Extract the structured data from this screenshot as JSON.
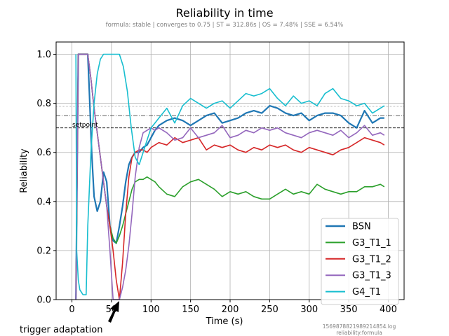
{
  "chart_data": {
    "type": "line",
    "title": "Reliability in time",
    "subtitle": "formula: stable | converges to 0.75 | ST = 312.86s | OS = 7.48% | SSE = 6.54%",
    "xlabel": "Time (s)",
    "ylabel": "Reliability",
    "xlim": [
      -20,
      420
    ],
    "ylim": [
      0,
      1.05
    ],
    "xticks": [
      0,
      50,
      100,
      150,
      200,
      250,
      300,
      350,
      400
    ],
    "yticks": [
      0.0,
      0.2,
      0.4,
      0.6,
      0.8,
      1.0
    ],
    "xtick_labels": [
      "0",
      "50",
      "100",
      "150",
      "200",
      "250",
      "300",
      "350",
      "400"
    ],
    "ytick_labels": [
      "0.0",
      "0.2",
      "0.4",
      "0.6",
      "0.8",
      "1.0"
    ],
    "grid": true,
    "legend_position": "bottom-right",
    "reference_lines": {
      "setpoint_value": 0.7,
      "setpoint_label": "setpoint",
      "converge_value": 0.75,
      "band_upper": 0.7874,
      "band_lower": 0.7874
    },
    "annotation": {
      "text": "trigger adaptation",
      "x": 60,
      "y": 0
    },
    "file_note_lines": [
      "1569878821989214854.log",
      "reliability:formula"
    ],
    "series": [
      {
        "name": "BSN",
        "color": "#1f77b4",
        "width": 2.2,
        "x": [
          5,
          8,
          10,
          12,
          14,
          16,
          18,
          20,
          22,
          25,
          28,
          32,
          36,
          40,
          44,
          48,
          52,
          56,
          60,
          64,
          68,
          72,
          76,
          80,
          85,
          90,
          95,
          100,
          105,
          110,
          120,
          130,
          140,
          150,
          160,
          170,
          180,
          190,
          200,
          210,
          220,
          230,
          240,
          250,
          260,
          270,
          280,
          290,
          300,
          310,
          320,
          330,
          340,
          350,
          360,
          370,
          380,
          390,
          395
        ],
        "y": [
          0.0,
          1.0,
          1.0,
          1.0,
          1.0,
          1.0,
          1.0,
          1.0,
          0.85,
          0.6,
          0.42,
          0.36,
          0.4,
          0.52,
          0.48,
          0.3,
          0.24,
          0.23,
          0.3,
          0.38,
          0.48,
          0.55,
          0.58,
          0.6,
          0.6,
          0.62,
          0.63,
          0.66,
          0.69,
          0.71,
          0.73,
          0.74,
          0.73,
          0.71,
          0.73,
          0.75,
          0.76,
          0.72,
          0.73,
          0.74,
          0.76,
          0.77,
          0.76,
          0.79,
          0.78,
          0.76,
          0.75,
          0.76,
          0.73,
          0.75,
          0.76,
          0.76,
          0.75,
          0.72,
          0.7,
          0.77,
          0.72,
          0.74,
          0.74
        ]
      },
      {
        "name": "G3_T1_1",
        "color": "#2ca02c",
        "width": 1.6,
        "x": [
          5,
          8,
          10,
          12,
          16,
          20,
          24,
          28,
          32,
          36,
          40,
          44,
          48,
          52,
          56,
          60,
          64,
          68,
          72,
          76,
          80,
          85,
          90,
          95,
          100,
          105,
          110,
          120,
          130,
          140,
          150,
          160,
          170,
          180,
          190,
          200,
          210,
          220,
          230,
          240,
          250,
          260,
          270,
          280,
          290,
          300,
          310,
          320,
          330,
          340,
          350,
          360,
          370,
          380,
          390,
          395
        ],
        "y": [
          0.0,
          1.0,
          1.0,
          1.0,
          1.0,
          1.0,
          0.9,
          0.78,
          0.68,
          0.58,
          0.48,
          0.38,
          0.3,
          0.25,
          0.23,
          0.26,
          0.3,
          0.35,
          0.4,
          0.45,
          0.48,
          0.49,
          0.49,
          0.5,
          0.49,
          0.48,
          0.46,
          0.43,
          0.42,
          0.46,
          0.48,
          0.49,
          0.47,
          0.45,
          0.42,
          0.44,
          0.43,
          0.44,
          0.42,
          0.41,
          0.41,
          0.43,
          0.45,
          0.43,
          0.44,
          0.43,
          0.47,
          0.45,
          0.44,
          0.43,
          0.44,
          0.44,
          0.46,
          0.46,
          0.47,
          0.46
        ]
      },
      {
        "name": "G3_T1_2",
        "color": "#d62728",
        "width": 1.6,
        "x": [
          5,
          8,
          10,
          12,
          16,
          20,
          24,
          28,
          32,
          36,
          40,
          44,
          48,
          52,
          56,
          60,
          64,
          68,
          72,
          76,
          80,
          85,
          90,
          95,
          100,
          105,
          110,
          120,
          130,
          140,
          150,
          160,
          170,
          180,
          190,
          200,
          210,
          220,
          230,
          240,
          250,
          260,
          270,
          280,
          290,
          300,
          310,
          320,
          330,
          340,
          350,
          360,
          370,
          380,
          390,
          395
        ],
        "y": [
          0.0,
          1.0,
          1.0,
          1.0,
          1.0,
          1.0,
          0.9,
          0.78,
          0.68,
          0.58,
          0.48,
          0.38,
          0.3,
          0.2,
          0.08,
          0.0,
          0.15,
          0.35,
          0.5,
          0.58,
          0.6,
          0.61,
          0.61,
          0.6,
          0.62,
          0.63,
          0.64,
          0.63,
          0.66,
          0.64,
          0.65,
          0.66,
          0.61,
          0.63,
          0.62,
          0.63,
          0.61,
          0.6,
          0.62,
          0.61,
          0.63,
          0.62,
          0.63,
          0.61,
          0.6,
          0.62,
          0.61,
          0.6,
          0.59,
          0.61,
          0.62,
          0.64,
          0.66,
          0.65,
          0.64,
          0.63
        ]
      },
      {
        "name": "G3_T1_3",
        "color": "#9467bd",
        "width": 1.6,
        "x": [
          5,
          8,
          10,
          12,
          16,
          20,
          24,
          28,
          32,
          36,
          40,
          44,
          48,
          52,
          56,
          60,
          64,
          68,
          72,
          76,
          80,
          85,
          90,
          95,
          100,
          105,
          110,
          120,
          130,
          140,
          150,
          160,
          170,
          180,
          190,
          200,
          210,
          220,
          230,
          240,
          250,
          260,
          270,
          280,
          290,
          300,
          310,
          320,
          330,
          340,
          350,
          360,
          370,
          380,
          390,
          395
        ],
        "y": [
          0.0,
          1.0,
          1.0,
          1.0,
          1.0,
          1.0,
          0.9,
          0.78,
          0.68,
          0.58,
          0.48,
          0.38,
          0.2,
          0.0,
          0.0,
          0.0,
          0.05,
          0.12,
          0.22,
          0.35,
          0.5,
          0.62,
          0.68,
          0.69,
          0.7,
          0.69,
          0.7,
          0.68,
          0.65,
          0.66,
          0.7,
          0.66,
          0.67,
          0.68,
          0.71,
          0.66,
          0.67,
          0.69,
          0.68,
          0.7,
          0.69,
          0.7,
          0.68,
          0.67,
          0.66,
          0.68,
          0.69,
          0.68,
          0.67,
          0.69,
          0.66,
          0.68,
          0.71,
          0.67,
          0.68,
          0.67
        ]
      },
      {
        "name": "G4_T1",
        "color": "#17becf",
        "width": 1.6,
        "x": [
          5,
          6,
          8,
          10,
          12,
          14,
          16,
          18,
          20,
          24,
          28,
          32,
          36,
          40,
          44,
          48,
          50,
          55,
          60,
          65,
          70,
          75,
          80,
          85,
          90,
          95,
          100,
          105,
          110,
          120,
          130,
          140,
          150,
          160,
          170,
          180,
          190,
          200,
          210,
          220,
          230,
          240,
          250,
          260,
          270,
          280,
          290,
          300,
          310,
          320,
          330,
          340,
          350,
          360,
          370,
          380,
          390,
          395
        ],
        "y": [
          1.0,
          0.2,
          0.08,
          0.04,
          0.03,
          0.02,
          0.02,
          0.02,
          0.3,
          0.6,
          0.8,
          0.92,
          0.98,
          1.0,
          1.0,
          1.0,
          1.0,
          1.0,
          1.0,
          0.95,
          0.85,
          0.7,
          0.58,
          0.55,
          0.6,
          0.65,
          0.7,
          0.72,
          0.74,
          0.78,
          0.72,
          0.79,
          0.82,
          0.8,
          0.78,
          0.8,
          0.81,
          0.78,
          0.81,
          0.84,
          0.83,
          0.84,
          0.86,
          0.82,
          0.79,
          0.83,
          0.8,
          0.81,
          0.79,
          0.84,
          0.86,
          0.82,
          0.81,
          0.79,
          0.8,
          0.76,
          0.78,
          0.79
        ]
      }
    ]
  }
}
